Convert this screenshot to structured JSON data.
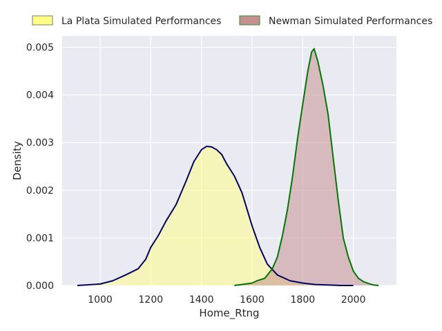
{
  "chart_data": {
    "type": "area",
    "title": "",
    "xlabel": "Home_Rtng",
    "ylabel": "Density",
    "xlim": [
      850,
      2170
    ],
    "ylim": [
      0,
      0.00524
    ],
    "xticks": [
      1000,
      1200,
      1400,
      1600,
      1800,
      2000
    ],
    "xtick_labels": [
      "1000",
      "1200",
      "1400",
      "1600",
      "1800",
      "2000"
    ],
    "yticks": [
      0,
      0.001,
      0.002,
      0.003,
      0.004,
      0.005
    ],
    "ytick_labels": [
      "0.000",
      "0.001",
      "0.002",
      "0.003",
      "0.004",
      "0.005"
    ],
    "grid": true,
    "legend_position": "top",
    "background": "#eaeaf2",
    "series": [
      {
        "name": "La Plata Simulated Performances",
        "fill": "#ffff80",
        "line": "#000066",
        "legend_edge": "#777777",
        "x": [
          910,
          1000,
          1050,
          1100,
          1150,
          1180,
          1200,
          1230,
          1260,
          1300,
          1340,
          1370,
          1400,
          1420,
          1440,
          1460,
          1480,
          1500,
          1530,
          1560,
          1600,
          1630,
          1660,
          1700,
          1750,
          1800,
          1850,
          1900,
          1950,
          2000
        ],
        "values": [
          0.0,
          3e-05,
          0.0001,
          0.00022,
          0.00035,
          0.00055,
          0.0008,
          0.00105,
          0.00135,
          0.0017,
          0.0022,
          0.0026,
          0.00285,
          0.00292,
          0.00291,
          0.00285,
          0.00275,
          0.00255,
          0.0023,
          0.00195,
          0.00125,
          0.0008,
          0.00045,
          0.00022,
          0.0001,
          5e-05,
          2e-05,
          1e-05,
          0.0,
          0.0
        ]
      },
      {
        "name": "Newman Simulated Performances",
        "fill": "#c48a8a",
        "line": "#007700",
        "legend_edge": "#2e8b2e",
        "x": [
          1530,
          1600,
          1620,
          1650,
          1680,
          1700,
          1720,
          1740,
          1760,
          1780,
          1800,
          1820,
          1835,
          1845,
          1860,
          1880,
          1900,
          1920,
          1940,
          1960,
          1980,
          2000,
          2020,
          2040,
          2060,
          2080,
          2100
        ],
        "values": [
          0.0,
          5e-05,
          0.0001,
          0.00015,
          0.00035,
          0.0006,
          0.00105,
          0.0016,
          0.0023,
          0.0031,
          0.0038,
          0.0045,
          0.0049,
          0.00497,
          0.0047,
          0.0042,
          0.0036,
          0.0027,
          0.0018,
          0.001,
          0.0006,
          0.0003,
          0.00015,
          8e-05,
          4e-05,
          1e-05,
          0.0
        ]
      }
    ]
  }
}
